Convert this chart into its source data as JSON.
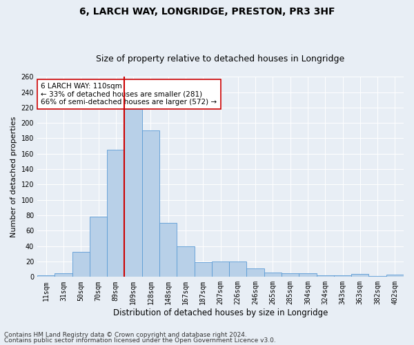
{
  "title": "6, LARCH WAY, LONGRIDGE, PRESTON, PR3 3HF",
  "subtitle": "Size of property relative to detached houses in Longridge",
  "xlabel": "Distribution of detached houses by size in Longridge",
  "ylabel": "Number of detached properties",
  "categories": [
    "11sqm",
    "31sqm",
    "50sqm",
    "70sqm",
    "89sqm",
    "109sqm",
    "128sqm",
    "148sqm",
    "167sqm",
    "187sqm",
    "207sqm",
    "226sqm",
    "246sqm",
    "265sqm",
    "285sqm",
    "304sqm",
    "324sqm",
    "343sqm",
    "363sqm",
    "382sqm",
    "402sqm"
  ],
  "values": [
    2,
    5,
    33,
    78,
    165,
    218,
    190,
    70,
    40,
    19,
    20,
    20,
    11,
    6,
    5,
    5,
    2,
    2,
    4,
    1,
    3
  ],
  "bar_color": "#b8d0e8",
  "bar_edge_color": "#5b9bd5",
  "vline_x_index": 5,
  "vline_color": "#cc0000",
  "annotation_text": "6 LARCH WAY: 110sqm\n← 33% of detached houses are smaller (281)\n66% of semi-detached houses are larger (572) →",
  "annotation_box_color": "#ffffff",
  "annotation_box_edge_color": "#cc0000",
  "ylim": [
    0,
    260
  ],
  "yticks": [
    0,
    20,
    40,
    60,
    80,
    100,
    120,
    140,
    160,
    180,
    200,
    220,
    240,
    260
  ],
  "bg_color": "#e8eef5",
  "plot_bg_color": "#e8eef5",
  "footer_line1": "Contains HM Land Registry data © Crown copyright and database right 2024.",
  "footer_line2": "Contains public sector information licensed under the Open Government Licence v3.0.",
  "title_fontsize": 10,
  "subtitle_fontsize": 9,
  "xlabel_fontsize": 8.5,
  "ylabel_fontsize": 8,
  "tick_fontsize": 7,
  "annotation_fontsize": 7.5,
  "footer_fontsize": 6.5
}
